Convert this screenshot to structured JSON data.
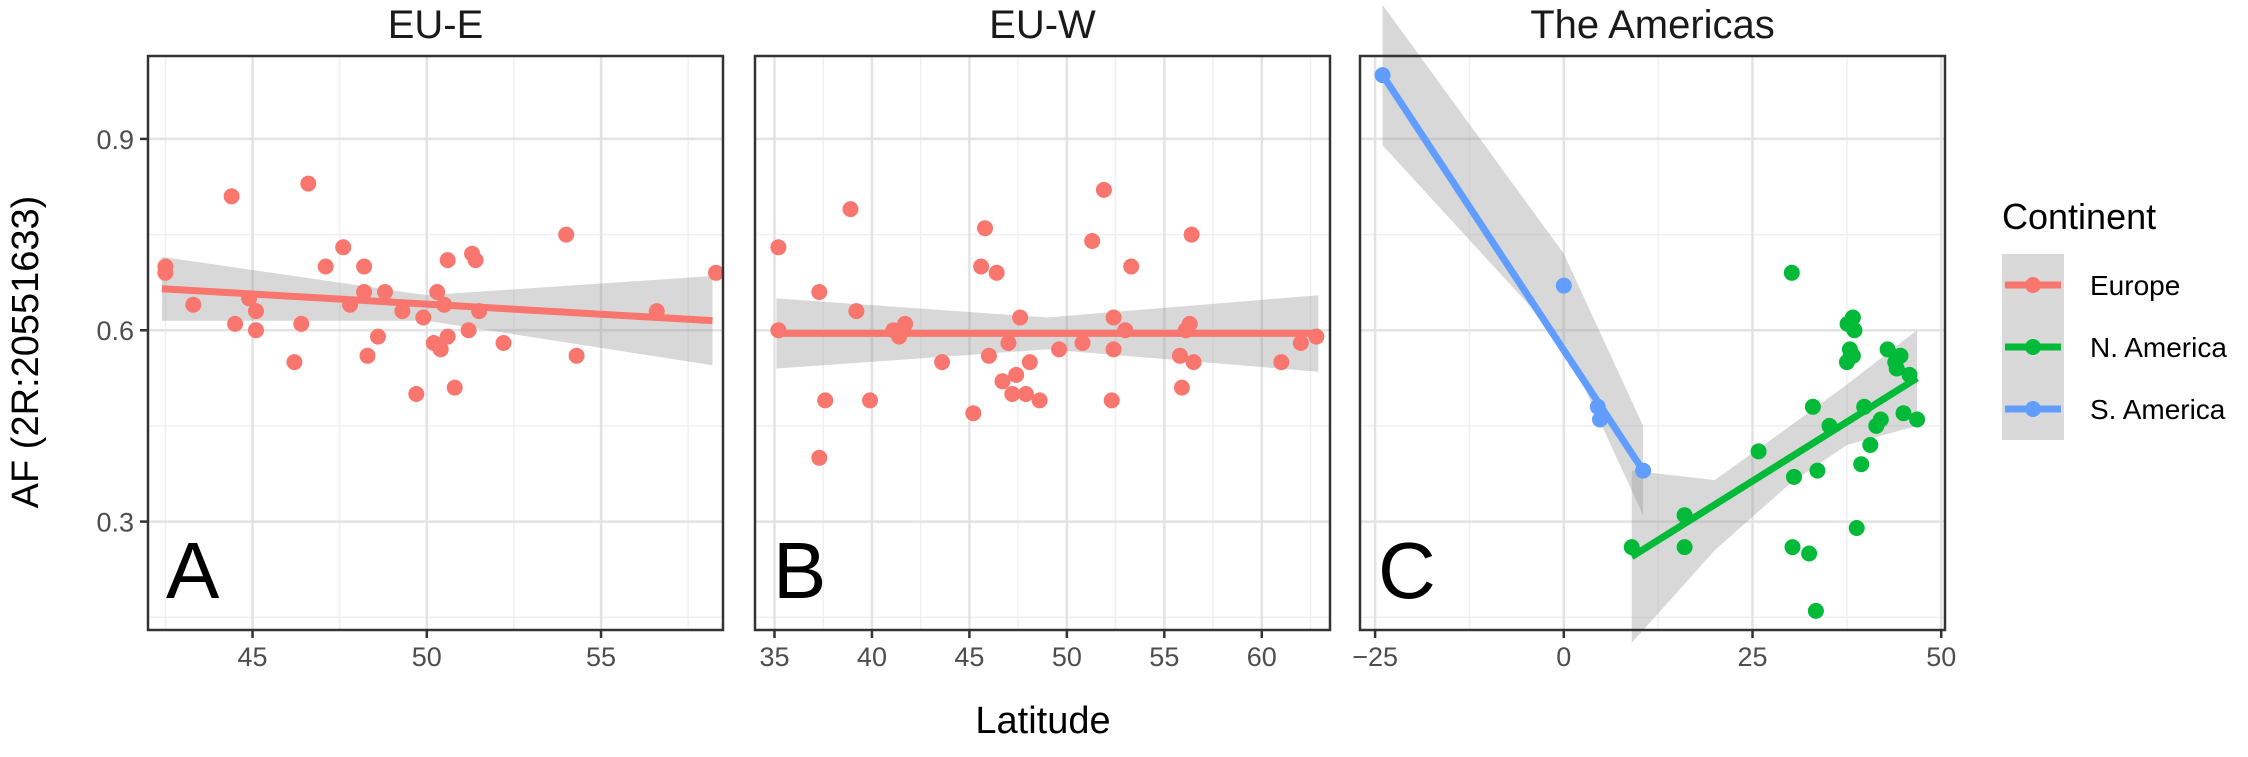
{
  "chart_data": {
    "type": "scatter",
    "ylabel": "AF (2R:20551633)",
    "xlabel": "Latitude",
    "ylim": [
      0.13,
      1.03
    ],
    "yticks": [
      0.3,
      0.6,
      0.9
    ],
    "grid": true,
    "legend": {
      "title": "Continent",
      "placement": "right",
      "entries": [
        {
          "name": "Europe",
          "color": "#F8766D"
        },
        {
          "name": "N. America",
          "color": "#00BA38"
        },
        {
          "name": "S. America",
          "color": "#619CFF"
        }
      ]
    },
    "panels": [
      {
        "title": "EU-E",
        "tag": "A",
        "xlim": [
          42,
          58.5
        ],
        "xticks": [
          45,
          50,
          55
        ],
        "series": [
          {
            "name": "Europe",
            "color": "#F8766D",
            "points": [
              [
                42.5,
                0.7
              ],
              [
                42.5,
                0.69
              ],
              [
                43.3,
                0.64
              ],
              [
                44.4,
                0.81
              ],
              [
                44.5,
                0.61
              ],
              [
                44.9,
                0.65
              ],
              [
                45.1,
                0.63
              ],
              [
                45.1,
                0.6
              ],
              [
                46.2,
                0.55
              ],
              [
                46.4,
                0.61
              ],
              [
                46.6,
                0.83
              ],
              [
                47.1,
                0.7
              ],
              [
                47.6,
                0.73
              ],
              [
                47.8,
                0.64
              ],
              [
                48.2,
                0.7
              ],
              [
                48.2,
                0.66
              ],
              [
                48.3,
                0.56
              ],
              [
                48.6,
                0.59
              ],
              [
                48.8,
                0.66
              ],
              [
                49.3,
                0.63
              ],
              [
                49.7,
                0.5
              ],
              [
                49.9,
                0.62
              ],
              [
                50.2,
                0.58
              ],
              [
                50.3,
                0.66
              ],
              [
                50.4,
                0.57
              ],
              [
                50.5,
                0.64
              ],
              [
                50.6,
                0.71
              ],
              [
                50.6,
                0.59
              ],
              [
                50.8,
                0.51
              ],
              [
                51.2,
                0.6
              ],
              [
                51.3,
                0.72
              ],
              [
                51.4,
                0.71
              ],
              [
                51.5,
                0.63
              ],
              [
                52.2,
                0.58
              ],
              [
                54.0,
                0.75
              ],
              [
                54.3,
                0.56
              ],
              [
                56.6,
                0.63
              ],
              [
                58.3,
                0.69
              ]
            ],
            "fit": {
              "x": [
                42.4,
                58.2
              ],
              "y": [
                0.665,
                0.615
              ]
            },
            "band": {
              "x": [
                42.4,
                50.0,
                58.2
              ],
              "lower": [
                0.615,
                0.615,
                0.545
              ],
              "upper": [
                0.715,
                0.655,
                0.685
              ]
            }
          }
        ]
      },
      {
        "title": "EU-W",
        "tag": "B",
        "xlim": [
          34,
          63.5
        ],
        "xticks": [
          35,
          40,
          45,
          50,
          55,
          60
        ],
        "series": [
          {
            "name": "Europe",
            "color": "#F8766D",
            "points": [
              [
                35.2,
                0.73
              ],
              [
                35.2,
                0.6
              ],
              [
                37.3,
                0.66
              ],
              [
                37.3,
                0.4
              ],
              [
                37.6,
                0.49
              ],
              [
                38.9,
                0.79
              ],
              [
                39.2,
                0.63
              ],
              [
                39.9,
                0.49
              ],
              [
                41.1,
                0.6
              ],
              [
                41.4,
                0.59
              ],
              [
                41.7,
                0.61
              ],
              [
                43.6,
                0.55
              ],
              [
                45.2,
                0.47
              ],
              [
                45.6,
                0.7
              ],
              [
                45.8,
                0.76
              ],
              [
                46.0,
                0.56
              ],
              [
                46.4,
                0.69
              ],
              [
                46.7,
                0.52
              ],
              [
                47.0,
                0.58
              ],
              [
                47.2,
                0.5
              ],
              [
                47.4,
                0.53
              ],
              [
                47.6,
                0.62
              ],
              [
                47.9,
                0.5
              ],
              [
                48.1,
                0.55
              ],
              [
                48.6,
                0.49
              ],
              [
                49.6,
                0.57
              ],
              [
                50.8,
                0.58
              ],
              [
                51.3,
                0.74
              ],
              [
                51.9,
                0.82
              ],
              [
                52.3,
                0.49
              ],
              [
                52.4,
                0.62
              ],
              [
                52.4,
                0.57
              ],
              [
                53.0,
                0.6
              ],
              [
                53.3,
                0.7
              ],
              [
                55.8,
                0.56
              ],
              [
                55.9,
                0.51
              ],
              [
                56.1,
                0.6
              ],
              [
                56.3,
                0.61
              ],
              [
                56.4,
                0.75
              ],
              [
                56.5,
                0.55
              ],
              [
                61.0,
                0.55
              ],
              [
                62.0,
                0.58
              ],
              [
                62.8,
                0.59
              ]
            ],
            "fit": {
              "x": [
                35.1,
                62.9
              ],
              "y": [
                0.595,
                0.595
              ]
            },
            "band": {
              "x": [
                35.1,
                49.0,
                62.9
              ],
              "lower": [
                0.54,
                0.57,
                0.535
              ],
              "upper": [
                0.65,
                0.62,
                0.655
              ]
            }
          }
        ]
      },
      {
        "title": "The Americas",
        "tag": "C",
        "xlim": [
          -27,
          50.5
        ],
        "xticks": [
          -25,
          0,
          25,
          50
        ],
        "series": [
          {
            "name": "S. America",
            "color": "#619CFF",
            "points": [
              [
                -24.0,
                1.0
              ],
              [
                0.0,
                0.67
              ],
              [
                4.5,
                0.48
              ],
              [
                4.8,
                0.46
              ],
              [
                10.5,
                0.38
              ]
            ],
            "fit": {
              "x": [
                -24.0,
                10.5
              ],
              "y": [
                1.0,
                0.38
              ]
            },
            "band": {
              "x": [
                -24.0,
                0.0,
                10.5
              ],
              "lower": [
                0.89,
                0.58,
                0.31
              ],
              "upper": [
                1.11,
                0.72,
                0.45
              ]
            }
          },
          {
            "name": "N. America",
            "color": "#00BA38",
            "points": [
              [
                9.0,
                0.26
              ],
              [
                16.0,
                0.31
              ],
              [
                16.0,
                0.26
              ],
              [
                25.8,
                0.41
              ],
              [
                30.2,
                0.69
              ],
              [
                30.3,
                0.26
              ],
              [
                30.5,
                0.37
              ],
              [
                32.5,
                0.25
              ],
              [
                33.0,
                0.48
              ],
              [
                33.4,
                0.16
              ],
              [
                33.6,
                0.38
              ],
              [
                35.2,
                0.45
              ],
              [
                37.5,
                0.55
              ],
              [
                37.6,
                0.61
              ],
              [
                37.9,
                0.57
              ],
              [
                38.0,
                0.56
              ],
              [
                38.3,
                0.62
              ],
              [
                38.3,
                0.56
              ],
              [
                38.5,
                0.6
              ],
              [
                38.8,
                0.29
              ],
              [
                39.4,
                0.39
              ],
              [
                39.8,
                0.48
              ],
              [
                40.6,
                0.42
              ],
              [
                41.4,
                0.45
              ],
              [
                42.0,
                0.46
              ],
              [
                42.9,
                0.57
              ],
              [
                43.9,
                0.55
              ],
              [
                44.1,
                0.54
              ],
              [
                44.6,
                0.56
              ],
              [
                45.0,
                0.47
              ],
              [
                45.8,
                0.53
              ],
              [
                46.8,
                0.46
              ]
            ],
            "fit": {
              "x": [
                9.0,
                46.8
              ],
              "y": [
                0.245,
                0.525
              ]
            },
            "band": {
              "x": [
                9.0,
                20.0,
                30.0,
                37.5,
                46.8
              ],
              "lower": [
                0.11,
                0.255,
                0.36,
                0.42,
                0.45
              ],
              "upper": [
                0.38,
                0.365,
                0.45,
                0.515,
                0.6
              ]
            }
          }
        ]
      }
    ]
  }
}
